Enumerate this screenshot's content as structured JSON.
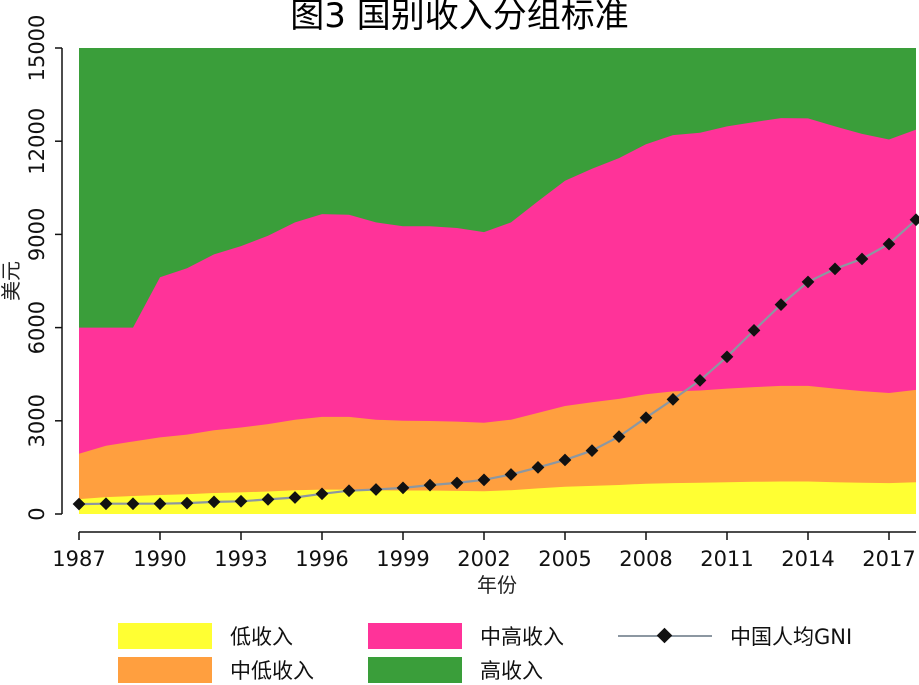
{
  "title": "图3 国别收入分组标准",
  "chart_data": {
    "type": "area",
    "x": [
      1987,
      1988,
      1989,
      1990,
      1991,
      1992,
      1993,
      1994,
      1995,
      1996,
      1997,
      1998,
      1999,
      2000,
      2001,
      2002,
      2003,
      2004,
      2005,
      2006,
      2007,
      2008,
      2009,
      2010,
      2011,
      2012,
      2013,
      2014,
      2015,
      2016,
      2017,
      2018
    ],
    "xticks": [
      "1987",
      "1990",
      "1993",
      "1996",
      "1999",
      "2002",
      "2005",
      "2008",
      "2011",
      "2014",
      "2017"
    ],
    "yticks": [
      "0",
      "3000",
      "6000",
      "9000",
      "12000",
      "15000"
    ],
    "ylim": [
      0,
      15000
    ],
    "xlabel": "年份",
    "ylabel": "美元",
    "series": [
      {
        "name": "低收入",
        "color": "#ffff33",
        "values": [
          480,
          545,
          580,
          610,
          635,
          675,
          695,
          725,
          765,
          785,
          785,
          760,
          755,
          755,
          745,
          735,
          765,
          825,
          875,
          905,
          935,
          975,
          995,
          1005,
          1025,
          1035,
          1045,
          1045,
          1025,
          1005,
          995,
          1025
        ]
      },
      {
        "name": "中低收入",
        "color": "#ff9f3f",
        "values": [
          1940,
          2200,
          2335,
          2465,
          2555,
          2695,
          2785,
          2895,
          3035,
          3125,
          3125,
          3035,
          3000,
          2995,
          2975,
          2935,
          3035,
          3255,
          3475,
          3595,
          3705,
          3855,
          3945,
          3975,
          4035,
          4085,
          4125,
          4125,
          4035,
          3955,
          3895,
          3995
        ]
      },
      {
        "name": "中高收入",
        "color": "#ff3399",
        "values": [
          6000,
          6000,
          6000,
          7620,
          7910,
          8355,
          8625,
          8955,
          9385,
          9655,
          9635,
          9385,
          9265,
          9265,
          9205,
          9075,
          9385,
          10065,
          10725,
          11115,
          11455,
          11905,
          12195,
          12275,
          12475,
          12615,
          12745,
          12735,
          12475,
          12235,
          12055,
          12375
        ]
      },
      {
        "name": "高收入",
        "color": "#3a9e3a",
        "values": [
          15000,
          15000,
          15000,
          15000,
          15000,
          15000,
          15000,
          15000,
          15000,
          15000,
          15000,
          15000,
          15000,
          15000,
          15000,
          15000,
          15000,
          15000,
          15000,
          15000,
          15000,
          15000,
          15000,
          15000,
          15000,
          15000,
          15000,
          15000,
          15000,
          15000,
          15000,
          15000
        ]
      },
      {
        "name": "中国人均GNI",
        "color": "#111111",
        "line_color": "#8c97a1",
        "type": "line",
        "values": [
          320,
          330,
          330,
          330,
          350,
          390,
          410,
          470,
          530,
          650,
          750,
          790,
          840,
          930,
          1000,
          1100,
          1270,
          1500,
          1740,
          2040,
          2490,
          3100,
          3690,
          4300,
          5060,
          5910,
          6740,
          7470,
          7890,
          8210,
          8690,
          9470
        ]
      }
    ],
    "legend": {
      "placement": "bottom",
      "columns": 3
    }
  },
  "legend_labels": {
    "low": "低收入",
    "upper_middle": "中高收入",
    "china": "中国人均GNI",
    "lower_middle": "中低收入",
    "high": "高收入"
  }
}
